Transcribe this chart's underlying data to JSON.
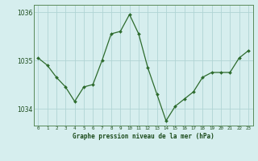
{
  "x": [
    0,
    1,
    2,
    3,
    4,
    5,
    6,
    7,
    8,
    9,
    10,
    11,
    12,
    13,
    14,
    15,
    16,
    17,
    18,
    19,
    20,
    21,
    22,
    23
  ],
  "y": [
    1035.05,
    1034.9,
    1034.65,
    1034.45,
    1034.15,
    1034.45,
    1034.5,
    1035.0,
    1035.55,
    1035.6,
    1035.95,
    1035.55,
    1034.85,
    1034.3,
    1033.75,
    1034.05,
    1034.2,
    1034.35,
    1034.65,
    1034.75,
    1034.75,
    1034.75,
    1035.05,
    1035.2
  ],
  "line_color": "#2d6b2d",
  "marker_color": "#2d6b2d",
  "bg_color": "#d6eeee",
  "plot_bg_color": "#d6eeee",
  "grid_color": "#b0d4d4",
  "border_color": "#5a8a5a",
  "title": "Graphe pression niveau de la mer (hPa)",
  "ylabel_ticks": [
    1034,
    1035,
    1036
  ],
  "ylim": [
    1033.65,
    1036.15
  ],
  "xlim": [
    -0.5,
    23.5
  ],
  "xtick_labels": [
    "0",
    "1",
    "2",
    "3",
    "4",
    "5",
    "6",
    "7",
    "8",
    "9",
    "10",
    "11",
    "12",
    "13",
    "14",
    "15",
    "16",
    "17",
    "18",
    "19",
    "20",
    "21",
    "22",
    "23"
  ]
}
